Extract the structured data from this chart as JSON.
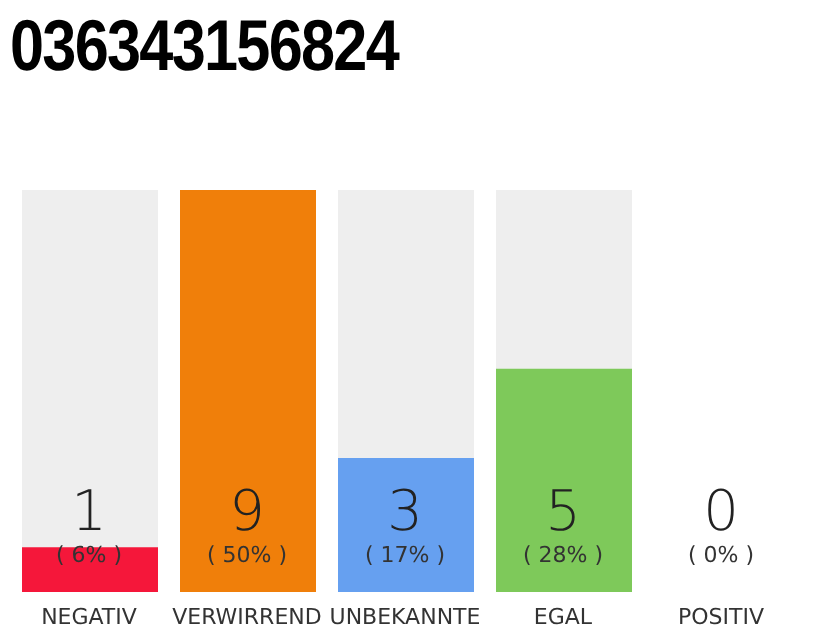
{
  "chart_data": {
    "type": "bar",
    "title": "036343156824",
    "categories": [
      "NEGATIV",
      "VERWIRREND",
      "UNBEKANNTE",
      "EGAL",
      "POSITIV"
    ],
    "values": [
      1,
      9,
      3,
      5,
      0
    ],
    "colors": [
      "#f5173a",
      "#f07f0a",
      "#66a0f0",
      "#7ec95a",
      "#cccccc"
    ],
    "ylim": [
      0,
      9
    ],
    "value_labels": [
      "1",
      "9",
      "3",
      "5",
      "0"
    ],
    "tick_labels": "x",
    "grid": false,
    "legend": false,
    "annotations": [
      "( 6% )",
      "( 50% )",
      "( 17% )",
      "( 28% )",
      "( 0% )"
    ]
  }
}
